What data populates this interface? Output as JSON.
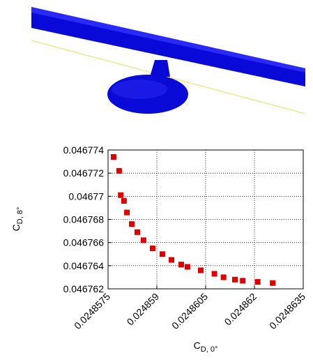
{
  "chart_data": {
    "type": "scatter",
    "xlabel": {
      "main": "C",
      "sub": "D, 0°"
    },
    "ylabel": {
      "main": "C",
      "sub": "D, 8°"
    },
    "color": "#e00000",
    "xlim": [
      0.0248575,
      0.0248635
    ],
    "xticks": [
      0.0248575,
      0.024859,
      0.0248605,
      0.024862,
      0.0248635
    ],
    "ylim": [
      0.046762,
      0.046774
    ],
    "yticks": [
      0.046762,
      0.046764,
      0.046766,
      0.046768,
      0.04677,
      0.046772,
      0.046774
    ],
    "grid": true,
    "x": [
      0.02485767,
      0.02485784,
      0.02485789,
      0.02485799,
      0.02485808,
      0.02485823,
      0.0248584,
      0.02485859,
      0.02485887,
      0.02485917,
      0.02485945,
      0.02485975,
      0.02485994,
      0.02486035,
      0.02486077,
      0.02486105,
      0.0248614,
      0.02486164,
      0.0248621,
      0.02486256
    ],
    "values": [
      0.0467734,
      0.0467722,
      0.0467701,
      0.0467696,
      0.0467686,
      0.0467676,
      0.0467669,
      0.0467662,
      0.0467655,
      0.046765,
      0.0467645,
      0.0467641,
      0.0467639,
      0.0467636,
      0.0467633,
      0.046763,
      0.0467628,
      0.0467627,
      0.0467626,
      0.0467625
    ]
  }
}
